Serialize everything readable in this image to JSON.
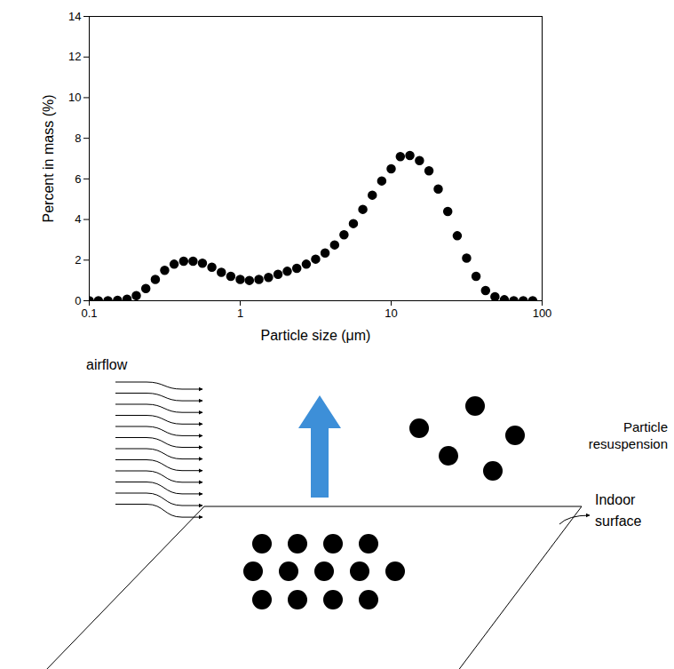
{
  "chart_data": {
    "type": "scatter",
    "x": [
      0.1,
      0.115,
      0.133,
      0.154,
      0.178,
      0.205,
      0.237,
      0.274,
      0.316,
      0.365,
      0.422,
      0.487,
      0.562,
      0.649,
      0.75,
      0.866,
      1,
      1.15,
      1.33,
      1.54,
      1.78,
      2.05,
      2.37,
      2.74,
      3.16,
      3.65,
      4.22,
      4.87,
      5.62,
      6.49,
      7.5,
      8.66,
      10,
      11.5,
      13.3,
      15.4,
      17.8,
      20.5,
      23.7,
      27.4,
      31.6,
      36.5,
      42.2,
      48.7,
      56.2,
      64.9,
      75,
      86.6
    ],
    "values": [
      0,
      0,
      0,
      0.02,
      0.08,
      0.25,
      0.6,
      1.05,
      1.5,
      1.8,
      1.95,
      1.95,
      1.85,
      1.65,
      1.4,
      1.2,
      1.05,
      1.0,
      1.05,
      1.15,
      1.3,
      1.45,
      1.6,
      1.8,
      2.05,
      2.35,
      2.75,
      3.25,
      3.8,
      4.5,
      5.2,
      5.9,
      6.5,
      7.1,
      7.15,
      6.9,
      6.4,
      5.5,
      4.4,
      3.2,
      2.1,
      1.2,
      0.5,
      0.2,
      0.05,
      0,
      0,
      0
    ],
    "x_label": "Particle size (μm)",
    "y_label": "Percent in mass (%)",
    "xlim": [
      0.1,
      100
    ],
    "xticks": [
      0.1,
      1,
      10,
      100
    ],
    "ylim": [
      0,
      14
    ],
    "yticks": [
      0,
      2,
      4,
      6,
      8,
      10,
      12,
      14
    ],
    "log": "x",
    "marker": "circle",
    "color": "#000000"
  },
  "diagram": {
    "airflow_label": "airflow",
    "resuspension_label": "Particle resuspension",
    "surface_label": "Indoor surface"
  }
}
